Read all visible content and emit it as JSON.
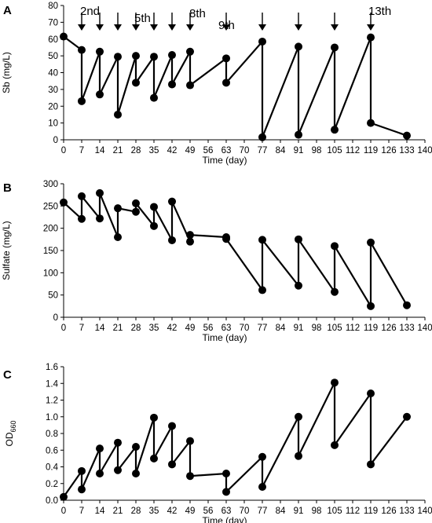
{
  "chart_data": [
    {
      "type": "line",
      "panel": "A",
      "xlabel": "Time (day)",
      "ylabel": "Sb  (mg/L)",
      "xlim": [
        0,
        140
      ],
      "ylim": [
        0,
        80
      ],
      "xticks": [
        0,
        7,
        14,
        21,
        28,
        35,
        42,
        49,
        56,
        63,
        70,
        77,
        84,
        91,
        98,
        105,
        112,
        119,
        126,
        133,
        140
      ],
      "yticks": [
        0,
        10,
        20,
        30,
        40,
        50,
        60,
        70,
        80
      ],
      "grid": false,
      "series": [
        {
          "points": [
            [
              0,
              61.5
            ],
            [
              7,
              53.5
            ],
            [
              7,
              23
            ],
            [
              14,
              52.5
            ],
            [
              14,
              27
            ],
            [
              21,
              49.5
            ],
            [
              21,
              15
            ],
            [
              28,
              50
            ],
            [
              28,
              34
            ],
            [
              35,
              49.5
            ],
            [
              35,
              25
            ],
            [
              42,
              50.5
            ],
            [
              42,
              33
            ],
            [
              49,
              52.5
            ],
            [
              49,
              32.5
            ],
            [
              63,
              48.5
            ],
            [
              63,
              34
            ],
            [
              77,
              58.5
            ],
            [
              77,
              1.5
            ],
            [
              91,
              55.5
            ],
            [
              91,
              3
            ],
            [
              105,
              55
            ],
            [
              105,
              6
            ],
            [
              119,
              61
            ],
            [
              119,
              10
            ],
            [
              133,
              2.5
            ]
          ]
        }
      ],
      "arrows_at": [
        7,
        14,
        21,
        28,
        35,
        42,
        49,
        63,
        77,
        91,
        105,
        119
      ],
      "annotations": [
        {
          "text": "2nd",
          "x": 7
        },
        {
          "text": "5th",
          "x": 28
        },
        {
          "text": "8th",
          "x": 49
        },
        {
          "text": "9th",
          "x": 63
        },
        {
          "text": "13th",
          "x": 119
        }
      ]
    },
    {
      "type": "line",
      "panel": "B",
      "xlabel": "Time (day)",
      "ylabel": "Sulfate  (mg/L)",
      "xlim": [
        0,
        140
      ],
      "ylim": [
        0,
        300
      ],
      "xticks": [
        0,
        7,
        14,
        21,
        28,
        35,
        42,
        49,
        56,
        63,
        70,
        77,
        84,
        91,
        98,
        105,
        112,
        119,
        126,
        133,
        140
      ],
      "yticks": [
        0,
        50,
        100,
        150,
        200,
        250,
        300
      ],
      "grid": false,
      "series": [
        {
          "points": [
            [
              0,
              258
            ],
            [
              7,
              221
            ],
            [
              7,
              272
            ],
            [
              14,
              222
            ],
            [
              14,
              279
            ],
            [
              21,
              180
            ],
            [
              21,
              245
            ],
            [
              28,
              237
            ],
            [
              28,
              256
            ],
            [
              35,
              205
            ],
            [
              35,
              248
            ],
            [
              42,
              173
            ],
            [
              42,
              260
            ],
            [
              49,
              170
            ],
            [
              49,
              185
            ],
            [
              63,
              180
            ],
            [
              63,
              176
            ],
            [
              77,
              61
            ],
            [
              77,
              174
            ],
            [
              91,
              71
            ],
            [
              91,
              175
            ],
            [
              105,
              57
            ],
            [
              105,
              160
            ],
            [
              119,
              25
            ],
            [
              119,
              168
            ],
            [
              133,
              27
            ]
          ]
        }
      ]
    },
    {
      "type": "line",
      "panel": "C",
      "xlabel": "Time (day)",
      "ylabel": "OD660",
      "ylabel_main": "OD",
      "ylabel_sub": "660",
      "xlim": [
        0,
        140
      ],
      "ylim": [
        0,
        1.6
      ],
      "xticks": [
        0,
        7,
        14,
        21,
        28,
        35,
        42,
        49,
        56,
        63,
        70,
        77,
        84,
        91,
        98,
        105,
        112,
        119,
        126,
        133,
        140
      ],
      "yticks": [
        "0.0",
        "0.2",
        "0.4",
        "0.6",
        "0.8",
        "1.0",
        "1.2",
        "1.4",
        "1.6"
      ],
      "grid": false,
      "series": [
        {
          "points": [
            [
              0,
              0.04
            ],
            [
              7,
              0.35
            ],
            [
              7,
              0.13
            ],
            [
              14,
              0.62
            ],
            [
              14,
              0.32
            ],
            [
              21,
              0.69
            ],
            [
              21,
              0.36
            ],
            [
              28,
              0.64
            ],
            [
              28,
              0.32
            ],
            [
              35,
              0.99
            ],
            [
              35,
              0.5
            ],
            [
              42,
              0.89
            ],
            [
              42,
              0.43
            ],
            [
              49,
              0.71
            ],
            [
              49,
              0.29
            ],
            [
              63,
              0.32
            ],
            [
              63,
              0.1
            ],
            [
              77,
              0.52
            ],
            [
              77,
              0.16
            ],
            [
              91,
              1.0
            ],
            [
              91,
              0.53
            ],
            [
              105,
              1.41
            ],
            [
              105,
              0.66
            ],
            [
              119,
              1.28
            ],
            [
              119,
              0.43
            ],
            [
              133,
              1.0
            ]
          ]
        }
      ]
    }
  ]
}
